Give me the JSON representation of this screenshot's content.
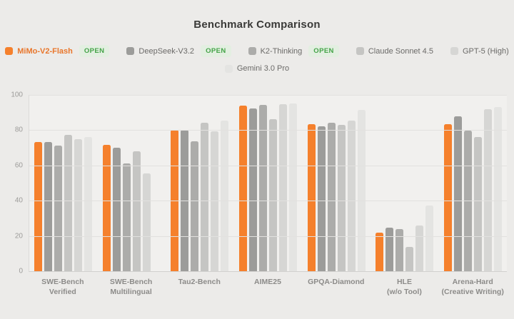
{
  "legend": {
    "open_badge_label": "OPEN"
  },
  "colors": {
    "background": "#ECEBE9",
    "plot_background": "#F1F0EE",
    "gridline": "#E2E1DF",
    "axis_line": "#D2D1CF",
    "title_text": "#3A3A38",
    "tick_text": "#9C9B99",
    "category_text": "#8C8B89",
    "legend_text": "#6B6A68",
    "open_badge_text": "#44A348",
    "open_badge_bg": "#E3EFE1",
    "accent_orange": "#F5802C"
  },
  "chart_data": {
    "type": "bar",
    "title": "Benchmark Comparison",
    "xlabel": "",
    "ylabel": "",
    "ylim": [
      0,
      100
    ],
    "yticks": [
      0,
      20,
      40,
      60,
      80,
      100
    ],
    "grid": true,
    "legend_position": "top",
    "categories": [
      [
        "SWE-Bench",
        "Verified"
      ],
      [
        "SWE-Bench",
        "Multilingual"
      ],
      [
        "Tau2-Bench"
      ],
      [
        "AIME25"
      ],
      [
        "GPQA-Diamond"
      ],
      [
        "HLE",
        "(w/o Tool)"
      ],
      [
        "Arena-Hard",
        "(Creative Writing)"
      ]
    ],
    "series": [
      {
        "name": "MiMo-V2-Flash",
        "open": true,
        "color": "#F5802C",
        "label_color": "#E9762B",
        "values": [
          73.4,
          71.7,
          80.3,
          94.1,
          83.5,
          21.7,
          83.3
        ]
      },
      {
        "name": "DeepSeek-V3.2",
        "open": true,
        "color": "#9C9C9A",
        "values": [
          73.1,
          70.2,
          80.1,
          92.4,
          82.1,
          24.6,
          87.9
        ]
      },
      {
        "name": "K2-Thinking",
        "open": true,
        "color": "#ACACAA",
        "values": [
          71.3,
          61.1,
          73.8,
          94.5,
          84.3,
          23.9,
          79.7
        ]
      },
      {
        "name": "Claude Sonnet 4.5",
        "open": false,
        "color": "#C5C5C3",
        "values": [
          77.2,
          68.0,
          84.3,
          86.4,
          83.2,
          13.6,
          76.0
        ]
      },
      {
        "name": "GPT-5 (High)",
        "open": false,
        "color": "#D6D6D4",
        "values": [
          74.9,
          55.3,
          79.5,
          94.6,
          85.4,
          25.8,
          91.8
        ]
      },
      {
        "name": "Gemini 3.0 Pro",
        "open": false,
        "color": "#E4E4E2",
        "values": [
          76.2,
          null,
          85.5,
          95.0,
          91.5,
          37.1,
          93.3
        ]
      }
    ]
  }
}
